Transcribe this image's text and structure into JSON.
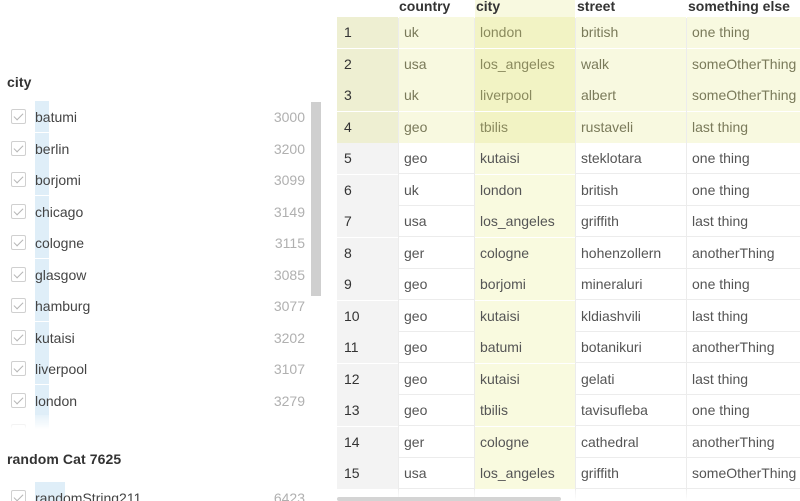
{
  "filter_panel": {
    "city_section": {
      "title": "city",
      "items": [
        {
          "label": "batumi",
          "count": "3000"
        },
        {
          "label": "berlin",
          "count": "3200"
        },
        {
          "label": "borjomi",
          "count": "3099"
        },
        {
          "label": "chicago",
          "count": "3149"
        },
        {
          "label": "cologne",
          "count": "3115"
        },
        {
          "label": "glasgow",
          "count": "3085"
        },
        {
          "label": "hamburg",
          "count": "3077"
        },
        {
          "label": "kutaisi",
          "count": "3202"
        },
        {
          "label": "liverpool",
          "count": "3107"
        },
        {
          "label": "london",
          "count": "3279"
        }
      ]
    },
    "random_section": {
      "title": "random Cat 7625",
      "items": [
        {
          "label": "randomString211",
          "count": "6423"
        }
      ]
    }
  },
  "grid": {
    "columns": [
      "",
      "country",
      "city",
      "street",
      "something else"
    ],
    "rows": [
      {
        "idx": "1",
        "country": "uk",
        "city": "london",
        "street": "british",
        "other": "one thing",
        "selected": true
      },
      {
        "idx": "2",
        "country": "usa",
        "city": "los_angeles",
        "street": "walk",
        "other": "someOtherThing",
        "selected": true
      },
      {
        "idx": "3",
        "country": "uk",
        "city": "liverpool",
        "street": "albert",
        "other": "someOtherThing",
        "selected": true
      },
      {
        "idx": "4",
        "country": "geo",
        "city": "tbilis",
        "street": "rustaveli",
        "other": "last thing",
        "selected": true
      },
      {
        "idx": "5",
        "country": "geo",
        "city": "kutaisi",
        "street": "steklotara",
        "other": "one thing"
      },
      {
        "idx": "6",
        "country": "uk",
        "city": "london",
        "street": "british",
        "other": "one thing"
      },
      {
        "idx": "7",
        "country": "usa",
        "city": "los_angeles",
        "street": "griffith",
        "other": "last thing"
      },
      {
        "idx": "8",
        "country": "ger",
        "city": "cologne",
        "street": "hohenzollern",
        "other": "anotherThing"
      },
      {
        "idx": "9",
        "country": "geo",
        "city": "borjomi",
        "street": "mineraluri",
        "other": "one thing"
      },
      {
        "idx": "10",
        "country": "geo",
        "city": "kutaisi",
        "street": "kldiashvili",
        "other": "last thing"
      },
      {
        "idx": "11",
        "country": "geo",
        "city": "batumi",
        "street": "botanikuri",
        "other": "anotherThing"
      },
      {
        "idx": "12",
        "country": "geo",
        "city": "kutaisi",
        "street": "gelati",
        "other": "last thing"
      },
      {
        "idx": "13",
        "country": "geo",
        "city": "tbilis",
        "street": "tavisufleba",
        "other": "one thing"
      },
      {
        "idx": "14",
        "country": "ger",
        "city": "cologne",
        "street": "cathedral",
        "other": "anotherThing"
      },
      {
        "idx": "15",
        "country": "usa",
        "city": "los_angeles",
        "street": "griffith",
        "other": "someOtherThing"
      }
    ]
  }
}
